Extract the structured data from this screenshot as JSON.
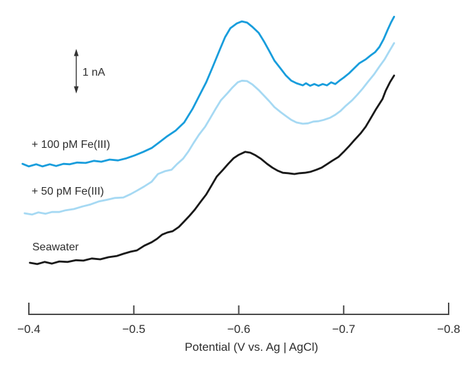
{
  "chart_data": {
    "type": "line",
    "title": "",
    "xlabel": "Potential (V vs. Ag | AgCl)",
    "x_axis": {
      "min": -0.4,
      "max": -0.8,
      "direction": "reversed",
      "ticks": [
        -0.4,
        -0.5,
        -0.6,
        -0.7,
        -0.8
      ],
      "tick_labels": [
        "−0.4",
        "−0.5",
        "−0.6",
        "−0.7",
        "−0.8"
      ]
    },
    "y_axis": {
      "label": "",
      "visible": false,
      "scale_bar": {
        "label": "1 nA",
        "value_nA": 1
      }
    },
    "grid": false,
    "legend_position": "inline-left-of-curves",
    "peak_potential_V": -0.6,
    "series": [
      {
        "name": "+ 100 pM Fe(III)",
        "color": "#189ddc",
        "potential_V": [
          -0.394,
          -0.4,
          -0.407,
          -0.413,
          -0.42,
          -0.426,
          -0.433,
          -0.439,
          -0.446,
          -0.454,
          -0.462,
          -0.469,
          -0.477,
          -0.485,
          -0.493,
          -0.501,
          -0.509,
          -0.517,
          -0.524,
          -0.532,
          -0.54,
          -0.548,
          -0.556,
          -0.562,
          -0.569,
          -0.575,
          -0.582,
          -0.587,
          -0.592,
          -0.598,
          -0.603,
          -0.608,
          -0.613,
          -0.619,
          -0.624,
          -0.629,
          -0.634,
          -0.64,
          -0.645,
          -0.65,
          -0.655,
          -0.661,
          -0.664,
          -0.668,
          -0.672,
          -0.676,
          -0.68,
          -0.684,
          -0.688,
          -0.692,
          -0.696,
          -0.7,
          -0.705,
          -0.71,
          -0.715,
          -0.721,
          -0.726,
          -0.73,
          -0.734,
          -0.738,
          -0.742,
          -0.745,
          -0.748
        ],
        "current_nA": [
          2.32,
          2.26,
          2.31,
          2.26,
          2.31,
          2.27,
          2.32,
          2.31,
          2.35,
          2.34,
          2.39,
          2.37,
          2.42,
          2.4,
          2.45,
          2.52,
          2.6,
          2.69,
          2.82,
          2.97,
          3.1,
          3.29,
          3.61,
          3.9,
          4.23,
          4.58,
          5.0,
          5.29,
          5.5,
          5.61,
          5.66,
          5.63,
          5.53,
          5.39,
          5.19,
          4.97,
          4.74,
          4.55,
          4.39,
          4.27,
          4.21,
          4.16,
          4.21,
          4.15,
          4.19,
          4.15,
          4.19,
          4.16,
          4.23,
          4.19,
          4.27,
          4.34,
          4.44,
          4.56,
          4.68,
          4.77,
          4.87,
          4.94,
          5.06,
          5.24,
          5.47,
          5.63,
          5.77
        ]
      },
      {
        "name": "+ 50 pM Fe(III)",
        "color": "#a6d9f3",
        "potential_V": [
          -0.396,
          -0.403,
          -0.409,
          -0.416,
          -0.422,
          -0.429,
          -0.435,
          -0.443,
          -0.451,
          -0.459,
          -0.467,
          -0.475,
          -0.482,
          -0.49,
          -0.497,
          -0.503,
          -0.51,
          -0.517,
          -0.523,
          -0.53,
          -0.536,
          -0.541,
          -0.547,
          -0.552,
          -0.557,
          -0.562,
          -0.568,
          -0.573,
          -0.578,
          -0.583,
          -0.589,
          -0.594,
          -0.599,
          -0.603,
          -0.608,
          -0.613,
          -0.619,
          -0.624,
          -0.629,
          -0.634,
          -0.64,
          -0.645,
          -0.65,
          -0.655,
          -0.661,
          -0.666,
          -0.671,
          -0.676,
          -0.681,
          -0.687,
          -0.692,
          -0.697,
          -0.702,
          -0.708,
          -0.713,
          -0.718,
          -0.723,
          -0.729,
          -0.734,
          -0.739,
          -0.743,
          -0.748
        ],
        "current_nA": [
          1.16,
          1.13,
          1.18,
          1.15,
          1.19,
          1.19,
          1.23,
          1.26,
          1.32,
          1.37,
          1.44,
          1.48,
          1.52,
          1.53,
          1.61,
          1.69,
          1.79,
          1.9,
          2.08,
          2.15,
          2.18,
          2.31,
          2.44,
          2.61,
          2.81,
          3.0,
          3.19,
          3.4,
          3.61,
          3.81,
          3.97,
          4.11,
          4.23,
          4.27,
          4.26,
          4.18,
          4.05,
          3.92,
          3.79,
          3.65,
          3.53,
          3.44,
          3.35,
          3.29,
          3.26,
          3.27,
          3.31,
          3.32,
          3.35,
          3.4,
          3.47,
          3.56,
          3.68,
          3.81,
          3.94,
          4.08,
          4.24,
          4.42,
          4.6,
          4.77,
          4.94,
          5.15
        ]
      },
      {
        "name": "Seawater",
        "color": "#191919",
        "potential_V": [
          -0.401,
          -0.408,
          -0.415,
          -0.422,
          -0.429,
          -0.437,
          -0.445,
          -0.452,
          -0.46,
          -0.468,
          -0.476,
          -0.484,
          -0.49,
          -0.497,
          -0.503,
          -0.51,
          -0.517,
          -0.522,
          -0.527,
          -0.532,
          -0.537,
          -0.543,
          -0.548,
          -0.553,
          -0.558,
          -0.564,
          -0.569,
          -0.574,
          -0.579,
          -0.585,
          -0.59,
          -0.595,
          -0.6,
          -0.606,
          -0.611,
          -0.616,
          -0.621,
          -0.627,
          -0.632,
          -0.637,
          -0.642,
          -0.647,
          -0.653,
          -0.658,
          -0.663,
          -0.668,
          -0.674,
          -0.679,
          -0.684,
          -0.689,
          -0.695,
          -0.7,
          -0.705,
          -0.71,
          -0.716,
          -0.721,
          -0.726,
          -0.731,
          -0.737,
          -0.74,
          -0.744,
          -0.748
        ],
        "current_nA": [
          0.0,
          -0.03,
          0.02,
          -0.02,
          0.03,
          0.02,
          0.06,
          0.05,
          0.1,
          0.08,
          0.13,
          0.16,
          0.21,
          0.26,
          0.29,
          0.4,
          0.48,
          0.56,
          0.66,
          0.71,
          0.74,
          0.84,
          0.97,
          1.1,
          1.24,
          1.44,
          1.6,
          1.81,
          2.02,
          2.18,
          2.32,
          2.45,
          2.53,
          2.6,
          2.58,
          2.52,
          2.44,
          2.32,
          2.23,
          2.16,
          2.11,
          2.1,
          2.08,
          2.1,
          2.11,
          2.13,
          2.18,
          2.23,
          2.31,
          2.39,
          2.48,
          2.6,
          2.73,
          2.87,
          3.03,
          3.19,
          3.4,
          3.61,
          3.84,
          4.03,
          4.23,
          4.39
        ]
      }
    ]
  }
}
